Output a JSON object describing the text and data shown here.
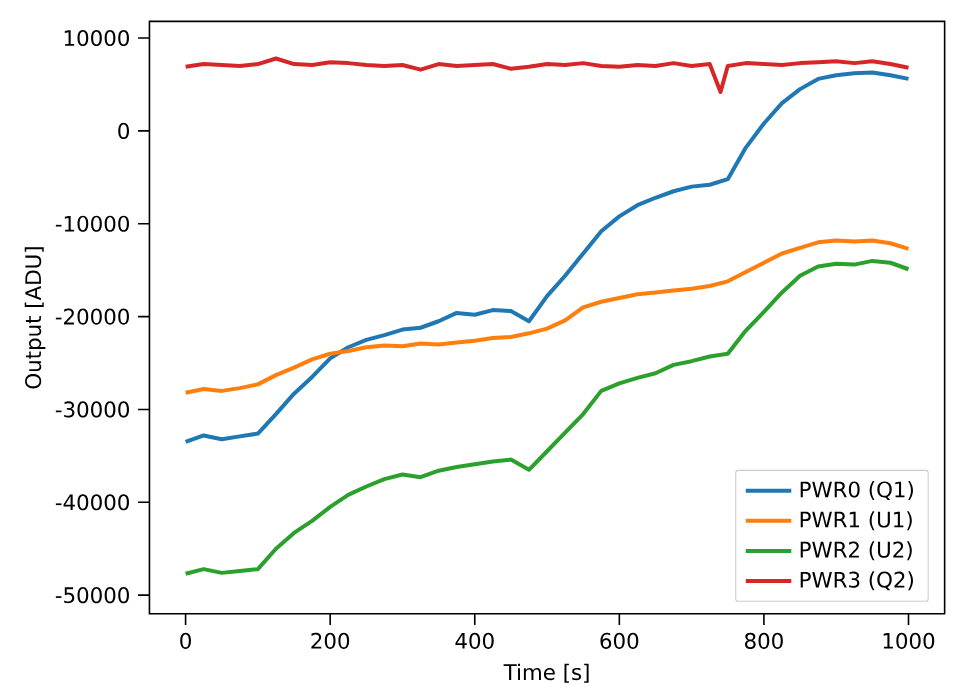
{
  "chart_data": {
    "type": "line",
    "xlabel": "Time [s]",
    "ylabel": "Output [ADU]",
    "xlim": [
      -50,
      1050
    ],
    "ylim": [
      -52000,
      11800
    ],
    "xticks": [
      0,
      200,
      400,
      600,
      800,
      1000
    ],
    "yticks": [
      -50000,
      -40000,
      -30000,
      -20000,
      -10000,
      0,
      10000
    ],
    "legend": "bottom right",
    "grid": false,
    "marker": "none",
    "line_style": "solid",
    "x": [
      0,
      25,
      50,
      75,
      100,
      125,
      150,
      175,
      200,
      225,
      250,
      275,
      300,
      325,
      350,
      375,
      400,
      425,
      450,
      475,
      500,
      525,
      550,
      575,
      600,
      625,
      650,
      675,
      700,
      725,
      750,
      775,
      800,
      825,
      850,
      875,
      900,
      925,
      950,
      975,
      1000
    ],
    "series": [
      {
        "name": "PWR0 (Q1)",
        "color": "#1f77b4",
        "values": [
          -33500,
          -32800,
          -33200,
          -32900,
          -32600,
          -30500,
          -28300,
          -26500,
          -24500,
          -23300,
          -22500,
          -22000,
          -21400,
          -21200,
          -20500,
          -19600,
          -19800,
          -19300,
          -19400,
          -20500,
          -17800,
          -15600,
          -13200,
          -10800,
          -9200,
          -8000,
          -7200,
          -6500,
          -6000,
          -5800,
          -5200,
          -1800,
          800,
          3000,
          4500,
          5600,
          6000,
          6200,
          6300,
          6000,
          5600
        ]
      },
      {
        "name": "PWR1 (U1)",
        "color": "#ff7f0e",
        "values": [
          -28200,
          -27800,
          -28000,
          -27700,
          -27300,
          -26300,
          -25500,
          -24600,
          -24000,
          -23700,
          -23300,
          -23100,
          -23200,
          -22900,
          -23000,
          -22800,
          -22600,
          -22300,
          -22200,
          -21800,
          -21300,
          -20400,
          -19000,
          -18400,
          -18000,
          -17600,
          -17400,
          -17200,
          -17000,
          -16700,
          -16200,
          -15200,
          -14200,
          -13200,
          -12600,
          -12000,
          -11800,
          -11900,
          -11800,
          -12100,
          -12700
        ]
      },
      {
        "name": "PWR2 (U2)",
        "color": "#2ca02c",
        "values": [
          -47700,
          -47200,
          -47600,
          -47400,
          -47200,
          -45000,
          -43300,
          -42000,
          -40500,
          -39200,
          -38300,
          -37500,
          -37000,
          -37300,
          -36600,
          -36200,
          -35900,
          -35600,
          -35400,
          -36500,
          -34500,
          -32500,
          -30500,
          -28000,
          -27200,
          -26600,
          -26100,
          -25200,
          -24800,
          -24300,
          -24000,
          -21500,
          -19500,
          -17400,
          -15600,
          -14600,
          -14300,
          -14400,
          -14000,
          -14200,
          -14900
        ]
      },
      {
        "name": "PWR3 (Q2)",
        "color": "#d62728",
        "x": [
          0,
          25,
          50,
          75,
          100,
          125,
          150,
          175,
          200,
          225,
          250,
          275,
          300,
          325,
          350,
          375,
          400,
          425,
          450,
          475,
          500,
          525,
          550,
          575,
          600,
          625,
          650,
          675,
          700,
          725,
          740,
          750,
          775,
          800,
          825,
          850,
          875,
          900,
          925,
          950,
          975,
          1000
        ],
        "values": [
          6900,
          7200,
          7100,
          7000,
          7200,
          7800,
          7200,
          7100,
          7400,
          7300,
          7100,
          7000,
          7100,
          6600,
          7200,
          7000,
          7100,
          7200,
          6700,
          6900,
          7200,
          7100,
          7300,
          7000,
          6900,
          7100,
          7000,
          7300,
          7000,
          7200,
          4200,
          7000,
          7300,
          7200,
          7100,
          7300,
          7400,
          7500,
          7300,
          7500,
          7200,
          6800
        ]
      }
    ]
  }
}
